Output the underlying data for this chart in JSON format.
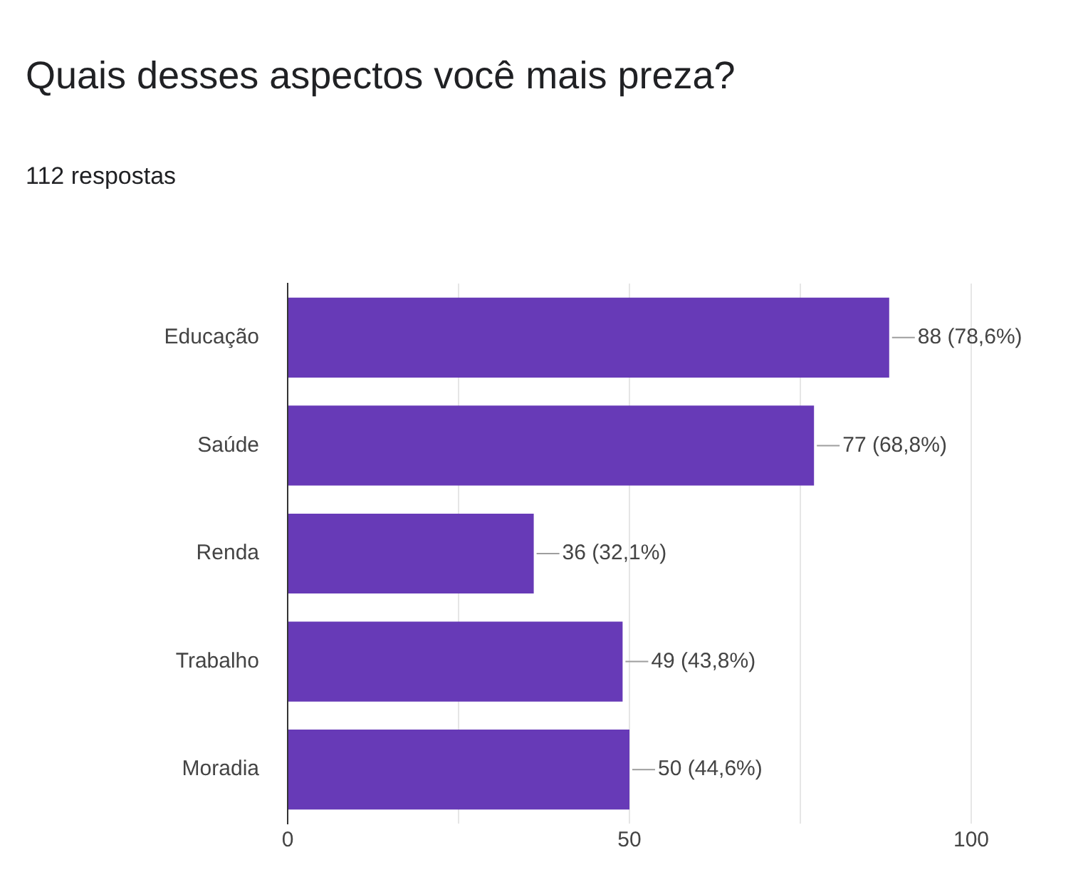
{
  "chart_data": {
    "type": "bar",
    "orientation": "horizontal",
    "title": "Quais desses aspectos você mais preza?",
    "subtitle": "112 respostas",
    "categories": [
      "Educação",
      "Saúde",
      "Renda",
      "Trabalho",
      "Moradia"
    ],
    "values": [
      88,
      77,
      36,
      49,
      50
    ],
    "value_labels": [
      "88 (78,6%)",
      "77 (68,8%)",
      "36 (32,1%)",
      "49 (43,8%)",
      "50 (44,6%)"
    ],
    "color": "#673ab7",
    "xlim": [
      0,
      100
    ],
    "xticks": [
      0,
      {
        "value": 25,
        "label": null
      },
      50,
      {
        "value": 75,
        "label": null
      },
      100
    ],
    "grid": "x",
    "legend": false
  }
}
